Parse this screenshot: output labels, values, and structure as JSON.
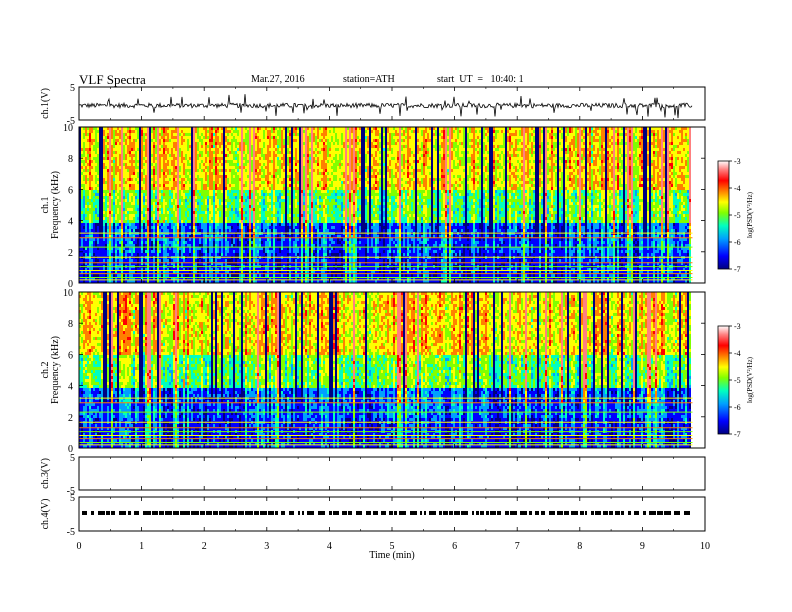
{
  "header": {
    "title": "VLF Spectra",
    "date": "Mar.27, 2016",
    "station": "station=ATH",
    "start": "start  UT  =   10:40: 1"
  },
  "chart_data": [
    {
      "type": "line",
      "ylabel": "ch.1(V)",
      "ylim": [
        -5,
        5
      ],
      "yticks": [
        "5",
        "-5"
      ],
      "xlim": [
        0,
        10
      ],
      "baseline_v": -0.6,
      "trace_color": "#000000"
    },
    {
      "type": "heatmap",
      "ylabel": "ch.1\nFrequency (kHz)",
      "ylabel_lines": [
        "ch.1",
        "Frequency (kHz)"
      ],
      "ylim": [
        0,
        10
      ],
      "yticks": [
        "0",
        "2",
        "4",
        "6",
        "8",
        "10"
      ],
      "xlim": [
        0,
        10
      ],
      "data_end_min": 9.8,
      "colorbar": {
        "label": "log(PSD(V²/Hz)",
        "range": [
          -7,
          -3
        ],
        "ticks": [
          "-3",
          "-4",
          "-5",
          "-6",
          "-7"
        ],
        "colors": [
          "#000080",
          "#0000ff",
          "#00a0ff",
          "#00ffc0",
          "#80ff00",
          "#ffff00",
          "#ff8000",
          "#ff0000",
          "#ff8080",
          "#ffffff"
        ]
      }
    },
    {
      "type": "heatmap",
      "ylabel": "ch.2\nFrequency (kHz)",
      "ylabel_lines": [
        "ch.2",
        "Frequency (kHz)"
      ],
      "ylim": [
        0,
        10
      ],
      "yticks": [
        "0",
        "2",
        "4",
        "6",
        "8",
        "10"
      ],
      "xlim": [
        0,
        10
      ],
      "data_end_min": 9.8,
      "colorbar": {
        "label": "log(PSD(V²/Hz)",
        "range": [
          -7,
          -3
        ],
        "ticks": [
          "-3",
          "-4",
          "-5",
          "-6",
          "-7"
        ],
        "colors": [
          "#000080",
          "#0000ff",
          "#00a0ff",
          "#00ffc0",
          "#80ff00",
          "#ffff00",
          "#ff8000",
          "#ff0000",
          "#ff8080",
          "#ffffff"
        ]
      }
    },
    {
      "type": "line",
      "ylabel": "ch.3(V)",
      "ylim": [
        -5,
        5
      ],
      "yticks": [
        "5",
        "-5"
      ],
      "xlim": [
        0,
        10
      ],
      "has_trace": false
    },
    {
      "type": "line",
      "ylabel": "ch.4(V)",
      "ylim": [
        -5,
        5
      ],
      "yticks": [
        "5",
        "-5"
      ],
      "xlim": [
        0,
        10
      ],
      "baseline_v": 0.3,
      "trace_color": "#000000",
      "xlabel": "Time  (min)",
      "xticks": [
        "0",
        "1",
        "2",
        "3",
        "4",
        "5",
        "6",
        "7",
        "8",
        "9",
        "10"
      ]
    }
  ]
}
